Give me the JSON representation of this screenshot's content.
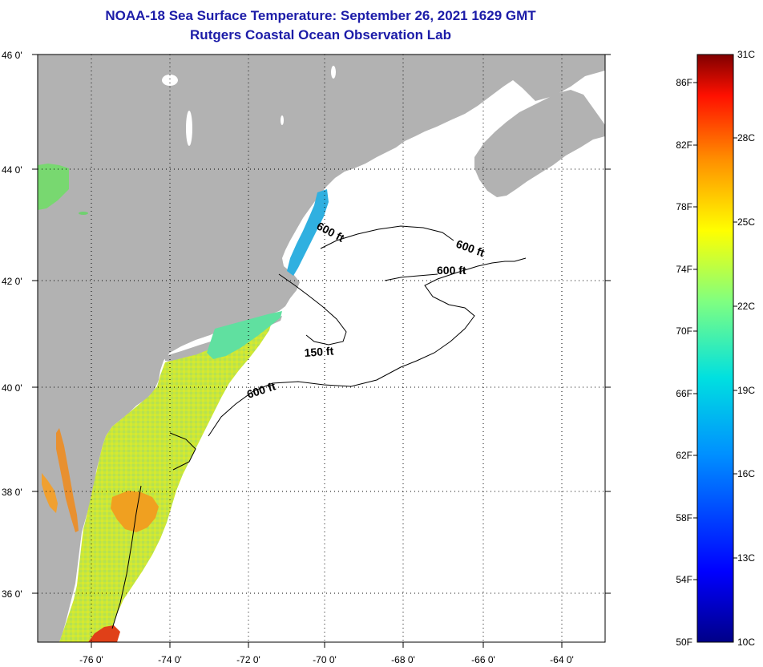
{
  "title": "NOAA-18 Sea Surface Temperature:  September 26, 2021 1629 GMT",
  "subtitle": "Rutgers Coastal Ocean Observation Lab",
  "latitude_ticks": [
    "46 0'",
    "44 0'",
    "42 0'",
    "40 0'",
    "38 0'",
    "36 0'"
  ],
  "longitude_ticks": [
    "-76 0'",
    "-74 0'",
    "-72 0'",
    "-70 0'",
    "-68 0'",
    "-66 0'",
    "-64 0'"
  ],
  "contour_labels": [
    "600 ft",
    "600 ft",
    "600 ft",
    "150 ft",
    "600 ft"
  ],
  "colorbar": {
    "fahrenheit_labels": [
      "86F",
      "82F",
      "78F",
      "74F",
      "70F",
      "66F",
      "62F",
      "58F",
      "54F",
      "50F"
    ],
    "celsius_labels": [
      "31C",
      "28C",
      "25C",
      "22C",
      "19C",
      "16C",
      "13C",
      "10C"
    ]
  },
  "colors": {
    "land": "#b2b2b2",
    "title_text": "#1c1ca8",
    "grid": "#000000"
  }
}
